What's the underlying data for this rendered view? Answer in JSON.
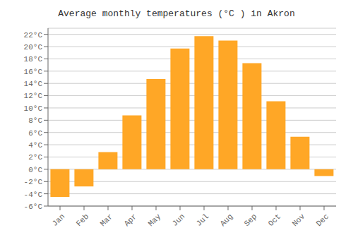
{
  "chart_data": {
    "type": "bar",
    "title": "Average monthly temperatures (°C ) in Akron",
    "categories": [
      "Jan",
      "Feb",
      "Mar",
      "Apr",
      "May",
      "Jun",
      "Jul",
      "Aug",
      "Sep",
      "Oct",
      "Nov",
      "Dec"
    ],
    "values": [
      -4.5,
      -2.8,
      2.8,
      8.8,
      14.7,
      19.7,
      21.7,
      21.0,
      17.3,
      11.1,
      5.3,
      -1.1
    ],
    "color": "#FFA726",
    "ylim": [
      -6,
      23
    ],
    "yticks": [
      {
        "value": -6,
        "label": "-6°C"
      },
      {
        "value": -4,
        "label": "-4°C"
      },
      {
        "value": -2,
        "label": "-2°C"
      },
      {
        "value": 0,
        "label": "0°C"
      },
      {
        "value": 2,
        "label": "2°C"
      },
      {
        "value": 4,
        "label": "4°C"
      },
      {
        "value": 6,
        "label": "6°C"
      },
      {
        "value": 8,
        "label": "8°C"
      },
      {
        "value": 10,
        "label": "10°C"
      },
      {
        "value": 12,
        "label": "12°C"
      },
      {
        "value": 14,
        "label": "14°C"
      },
      {
        "value": 16,
        "label": "16°C"
      },
      {
        "value": 18,
        "label": "18°C"
      },
      {
        "value": 20,
        "label": "20°C"
      },
      {
        "value": 22,
        "label": "22°C"
      }
    ],
    "grid": true
  }
}
